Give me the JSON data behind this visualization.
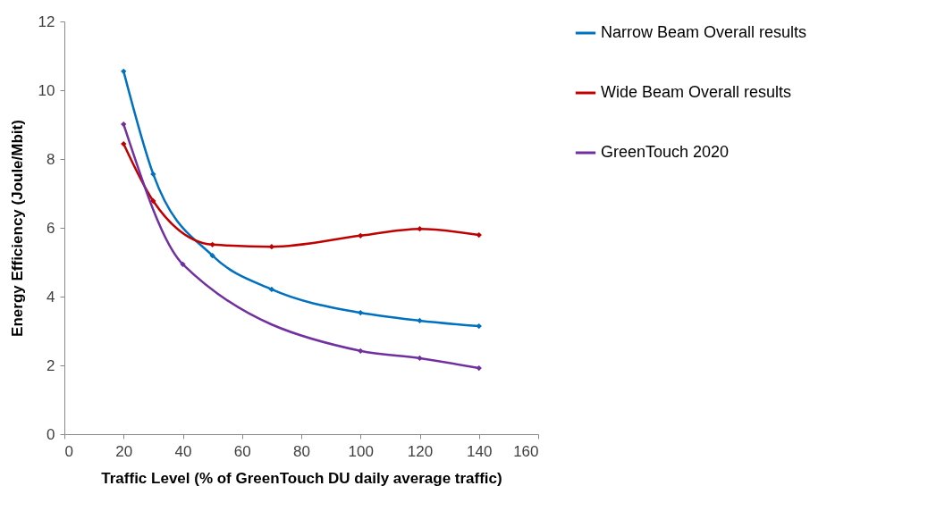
{
  "chart_data": {
    "type": "line",
    "xlabel": "Traffic Level (% of GreenTouch DU daily average traffic)",
    "ylabel": "Energy Efficiency (Joule/Mbit)",
    "xlim": [
      0,
      160
    ],
    "xticks": [
      0,
      20,
      40,
      60,
      80,
      100,
      120,
      140,
      160
    ],
    "ylim": [
      0,
      12
    ],
    "yticks": [
      0,
      2,
      4,
      6,
      8,
      10,
      12
    ],
    "grid": false,
    "legend": "right",
    "marker": "diamond",
    "line_style": "solid",
    "series": [
      {
        "name": "Narrow Beam Overall results",
        "color": "#0070c0",
        "x": [
          20,
          30,
          50,
          70,
          100,
          120,
          140
        ],
        "values": [
          10.55,
          7.56,
          5.19,
          4.21,
          3.53,
          3.3,
          3.14
        ]
      },
      {
        "name": "Wide Beam Overall results",
        "color": "#c00000",
        "x": [
          20,
          30,
          50,
          70,
          100,
          120,
          140
        ],
        "values": [
          8.44,
          6.78,
          5.51,
          5.45,
          5.77,
          5.97,
          5.79
        ]
      },
      {
        "name": "GreenTouch 2020",
        "color": "#7030a0",
        "x": [
          20,
          40,
          100,
          120,
          140
        ],
        "values": [
          9.01,
          4.94,
          2.42,
          2.21,
          1.92
        ]
      }
    ]
  }
}
